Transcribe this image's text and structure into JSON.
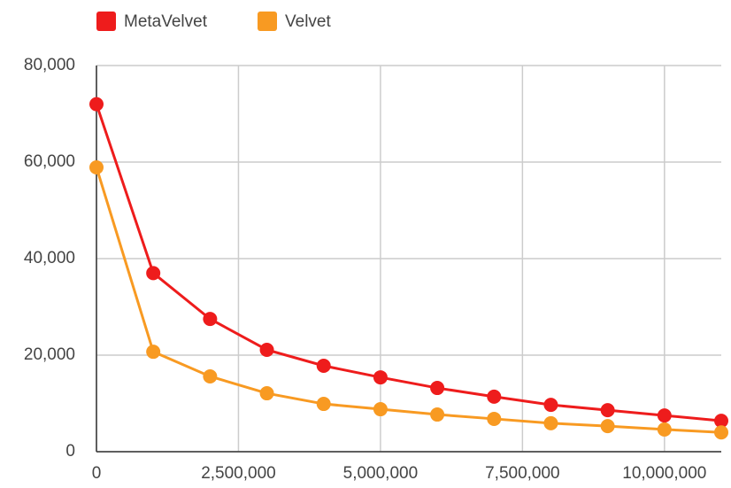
{
  "chart_data": {
    "type": "line",
    "x": [
      0,
      1000000,
      2000000,
      3000000,
      4000000,
      5000000,
      6000000,
      7000000,
      8000000,
      9000000,
      10000000,
      11000000
    ],
    "series": [
      {
        "name": "MetaVelvet",
        "color": "#ee1c1c",
        "values": [
          72000,
          37000,
          27500,
          21100,
          17800,
          15400,
          13200,
          11400,
          9700,
          8600,
          7500,
          6400
        ]
      },
      {
        "name": "Velvet",
        "color": "#f89a22",
        "values": [
          58900,
          20700,
          15600,
          12100,
          9900,
          8800,
          7700,
          6800,
          5900,
          5300,
          4600,
          4000
        ]
      }
    ],
    "xlim": [
      0,
      11000000
    ],
    "xticks": [
      0,
      {
        "value": 2500000,
        "label": "2,500,000"
      },
      {
        "value": 5000000,
        "label": "5,000,000"
      },
      {
        "value": 7500000,
        "label": "7,500,000"
      },
      {
        "value": 10000000,
        "label": "10,000,000"
      }
    ],
    "ylim": [
      0,
      80000
    ],
    "yticks": [
      0,
      {
        "value": 20000,
        "label": "20,000"
      },
      {
        "value": 40000,
        "label": "40,000"
      },
      {
        "value": 60000,
        "label": "60,000"
      },
      {
        "value": 80000,
        "label": "80,000"
      }
    ],
    "grid": true,
    "legend": "top-left"
  }
}
